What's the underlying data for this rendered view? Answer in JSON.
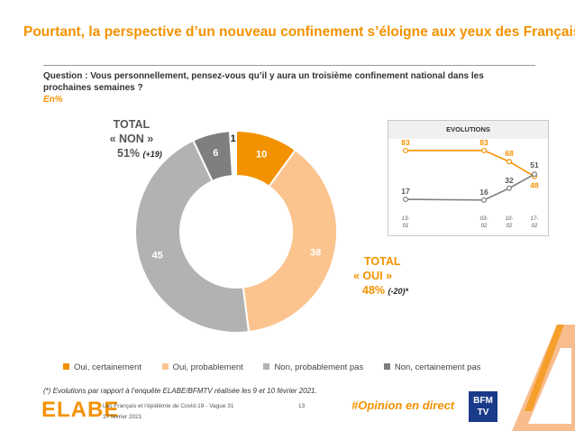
{
  "slide": {
    "title": "Pourtant, la perspective d’un nouveau confinement s’éloigne aux yeux des Français",
    "question": "Question : Vous personnellement, pensez-vous qu’il y aura un troisième confinement national dans les prochaines semaines ?",
    "unit": "En%",
    "footnote": "(*) Evolutions par rapport à l’enquête ELABE/BFMTV réalisée les 9 et 10 février 2021.",
    "source": "Les Français et l’épidémie de Covid-19 - Vague 31",
    "date": "17 février 2021",
    "page_number": "13",
    "hashtag": "#Opinion en direct",
    "logo": "ELABE",
    "partner_logo": "BFM TV"
  },
  "totals": {
    "non": {
      "label_line1": "TOTAL",
      "label_line2": "« NON »",
      "value": "51%",
      "delta": "(+19)"
    },
    "oui": {
      "label_line1": "TOTAL",
      "label_line2": "« OUI »",
      "value": "48%",
      "delta": "(-20)*"
    }
  },
  "colors": {
    "oui_certainement": "#f39200",
    "oui_probablement": "#fbc48f",
    "non_probablement_pas": "#b2b2b2",
    "non_certainement_pas": "#7f7f7f",
    "title": "#f39200"
  },
  "chart_data": [
    {
      "type": "pie",
      "variant": "donut",
      "categories": [
        "Oui, certainement",
        "Oui, probablement",
        "Non, probablement pas",
        "Non, certainement pas",
        "(unlabeled)"
      ],
      "values": [
        10,
        38,
        45,
        6,
        1
      ],
      "legend": [
        "Oui, certainement",
        "Oui, probablement",
        "Non, probablement pas",
        "Non, certainement pas"
      ],
      "legend_position": "bottom"
    },
    {
      "type": "line",
      "title": "EVOLUTIONS",
      "x": [
        "13-01",
        "03-02",
        "10-02",
        "17-02"
      ],
      "series": [
        {
          "values": [
            83,
            83,
            68,
            48
          ],
          "color": "#f39200"
        },
        {
          "values": [
            17,
            16,
            32,
            51
          ],
          "color": "#7f7f7f"
        }
      ]
    }
  ]
}
